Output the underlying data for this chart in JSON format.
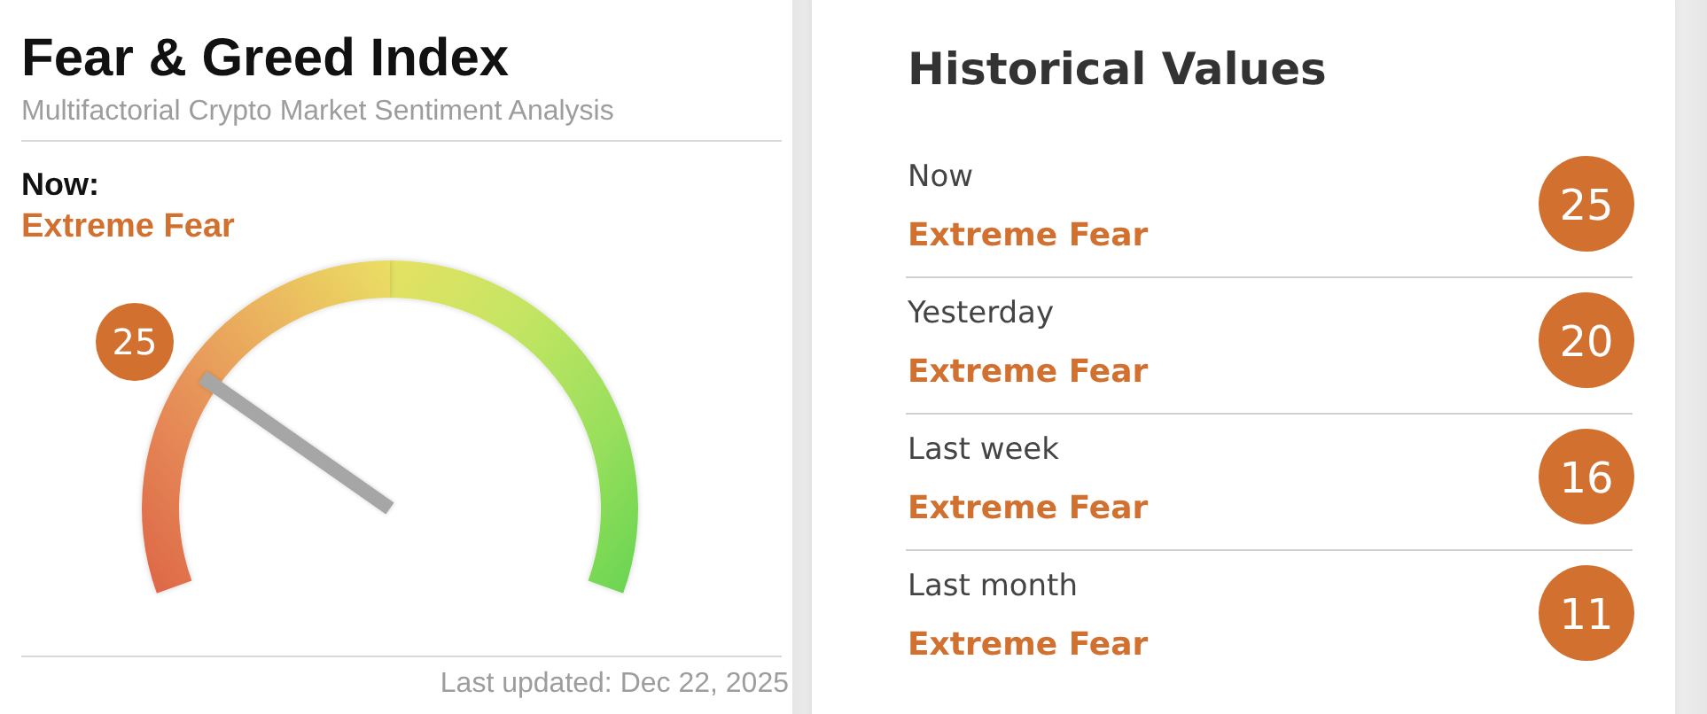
{
  "chart_data": [
    {
      "type": "other",
      "title": "Fear & Greed Index",
      "subtitle": "Multifactorial Crypto Market Sentiment Analysis",
      "values": [
        25
      ],
      "data_labels": true,
      "color": "#d2702f",
      "annotations": [
        "Now:",
        "Extreme Fear",
        "Last updated: Dec 22, 2025"
      ]
    },
    {
      "type": "other",
      "title": "Historical Values",
      "categories": [
        "Now",
        "Yesterday",
        "Last week",
        "Last month"
      ],
      "values": [
        25,
        20,
        16,
        11
      ],
      "data_labels": true,
      "color": "#d2702f",
      "annotations": [
        "Extreme Fear",
        "Extreme Fear",
        "Extreme Fear",
        "Extreme Fear"
      ]
    }
  ]
}
